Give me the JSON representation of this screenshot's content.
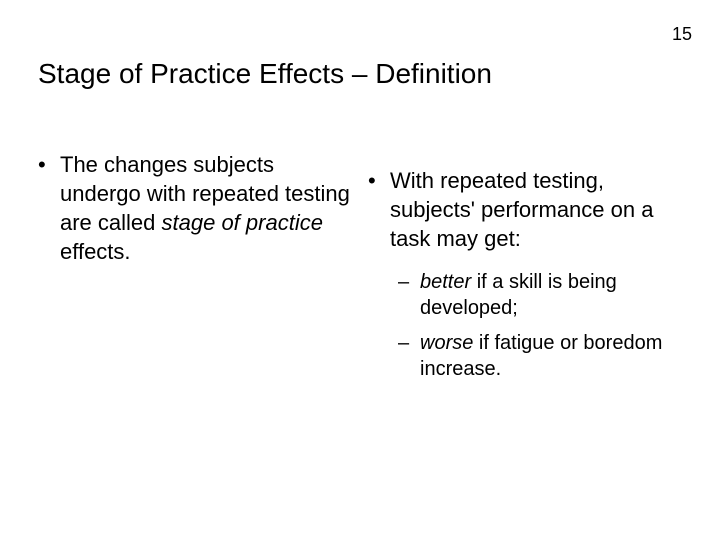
{
  "page_number": "15",
  "title": "Stage of Practice Effects – Definition",
  "left": {
    "p1_a": "The changes subjects undergo with repeated testing are called ",
    "p1_b_italic": "stage of practice",
    "p1_c": " effects."
  },
  "right": {
    "p1": "With repeated testing, subjects' performance on a task may get:",
    "sub1_a_italic": "better",
    "sub1_b": " if a skill is being developed;",
    "sub2_a_italic": "worse",
    "sub2_b": " if fatigue or boredom increase."
  },
  "bullet_l1_marker": "•",
  "bullet_l2_marker": "–"
}
